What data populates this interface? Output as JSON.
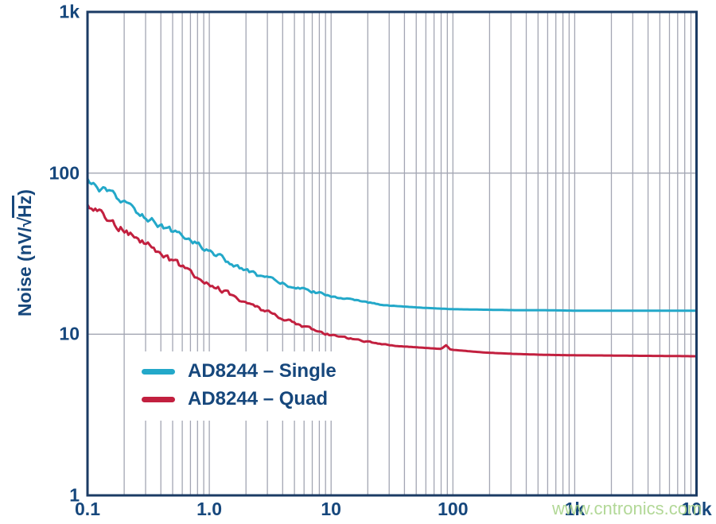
{
  "watermark": {
    "text": "www.cntronics.com",
    "color": "#aad48c"
  },
  "chart_data": {
    "type": "line",
    "title": "",
    "xlabel": "",
    "ylabel": {
      "prefix": "Noise (nV/",
      "radical": "√",
      "radicand": "Hz",
      "suffix": ")"
    },
    "x_scale": "log",
    "y_scale": "log",
    "xlim": [
      0.1,
      10000
    ],
    "ylim": [
      1,
      1000
    ],
    "grid": {
      "on": true,
      "x_minor": true,
      "y_minor": false,
      "color": "#a3a6b3"
    },
    "axis_color": "#1b3b64",
    "text_color": "#16477c",
    "legend_position": "lower-left",
    "x_ticks": [
      {
        "label": "0.1",
        "value": 0.1
      },
      {
        "label": "1.0",
        "value": 1
      },
      {
        "label": "10",
        "value": 10
      },
      {
        "label": "100",
        "value": 100
      },
      {
        "label": "1k",
        "value": 1000
      },
      {
        "label": "10k",
        "value": 10000
      }
    ],
    "y_ticks": [
      {
        "label": "1",
        "value": 1
      },
      {
        "label": "10",
        "value": 10
      },
      {
        "label": "100",
        "value": 100
      },
      {
        "label": "1k",
        "value": 1000
      }
    ],
    "series": [
      {
        "name": "AD8244 – Single",
        "color": "#23a8c9",
        "x": [
          0.1,
          0.13,
          0.17,
          0.22,
          0.3,
          0.4,
          0.55,
          0.75,
          1,
          1.3,
          1.8,
          2.4,
          3.2,
          4.2,
          5.6,
          7.5,
          10,
          13,
          18,
          24,
          32,
          56,
          100,
          180,
          320,
          560,
          1000,
          1800,
          3200,
          5600,
          10000
        ],
        "y": [
          88,
          79,
          70,
          62,
          54,
          47.5,
          42,
          37.5,
          33,
          29.5,
          25.5,
          23.5,
          21.8,
          20.4,
          19.2,
          18.2,
          17.3,
          16.6,
          15.9,
          15.4,
          15.0,
          14.6,
          14.3,
          14.2,
          14.1,
          14.1,
          14.0,
          14.0,
          14.0,
          14.0,
          14.0
        ]
      },
      {
        "name": "AD8244 – Quad",
        "color": "#c2203f",
        "x": [
          0.1,
          0.13,
          0.17,
          0.22,
          0.3,
          0.4,
          0.55,
          0.75,
          1,
          1.3,
          1.8,
          2.4,
          3.2,
          4.2,
          5.6,
          7.5,
          10,
          13,
          18,
          24,
          32,
          56,
          80,
          88,
          95,
          100,
          180,
          320,
          560,
          1000,
          1800,
          3200,
          5600,
          10000
        ],
        "y": [
          62,
          55,
          48,
          42.5,
          36.5,
          31.5,
          27,
          23.5,
          20.8,
          18.5,
          16.3,
          14.7,
          13.4,
          12.3,
          11.3,
          10.5,
          9.9,
          9.5,
          9.1,
          8.8,
          8.5,
          8.25,
          8.1,
          8.55,
          8.05,
          8.0,
          7.7,
          7.55,
          7.45,
          7.4,
          7.38,
          7.35,
          7.33,
          7.3
        ]
      }
    ]
  }
}
